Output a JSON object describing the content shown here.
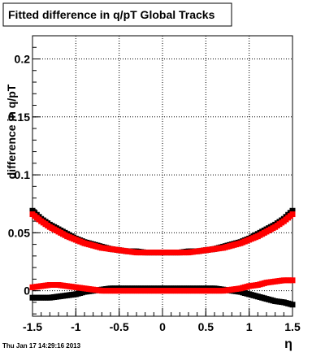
{
  "chart_data": {
    "type": "scatter",
    "title": "Fitted difference in q/pT  Global Tracks",
    "xlabel": "η",
    "ylabel": "difference in q/pT",
    "xlim": [
      -1.5,
      1.5
    ],
    "ylim": [
      -0.022,
      0.22
    ],
    "x_ticks": [
      "-1.5",
      "-1",
      "-0.5",
      "0",
      "0.5",
      "1",
      "1.5"
    ],
    "y_ticks": [
      "0",
      "0.05",
      "0.1",
      "0.15",
      "0.2"
    ],
    "grid": true,
    "timestamp": "Thu Jan 17 14:29:16 2013",
    "series": [
      {
        "color": "#000000",
        "x": [
          -1.5,
          -1.4,
          -1.3,
          -1.2,
          -1.1,
          -1.0,
          -0.9,
          -0.8,
          -0.7,
          -0.6,
          -0.5,
          -0.4,
          -0.3,
          -0.2,
          -0.1,
          0.0,
          0.1,
          0.2,
          0.3,
          0.4,
          0.5,
          0.6,
          0.7,
          0.8,
          0.9,
          1.0,
          1.1,
          1.2,
          1.3,
          1.4,
          1.5
        ],
        "y": [
          0.069,
          0.062,
          0.057,
          0.053,
          0.049,
          0.045,
          0.042,
          0.04,
          0.038,
          0.036,
          0.035,
          0.034,
          0.034,
          0.033,
          0.033,
          0.033,
          0.033,
          0.033,
          0.034,
          0.034,
          0.035,
          0.036,
          0.038,
          0.04,
          0.042,
          0.045,
          0.049,
          0.053,
          0.057,
          0.062,
          0.069
        ]
      },
      {
        "color": "#ff0000",
        "x": [
          -1.5,
          -1.4,
          -1.3,
          -1.2,
          -1.1,
          -1.0,
          -0.9,
          -0.8,
          -0.7,
          -0.6,
          -0.5,
          -0.4,
          -0.3,
          -0.2,
          -0.1,
          0.0,
          0.1,
          0.2,
          0.3,
          0.4,
          0.5,
          0.6,
          0.7,
          0.8,
          0.9,
          1.0,
          1.1,
          1.2,
          1.3,
          1.4,
          1.5
        ],
        "y": [
          0.066,
          0.06,
          0.055,
          0.051,
          0.047,
          0.044,
          0.041,
          0.039,
          0.037,
          0.036,
          0.035,
          0.034,
          0.033,
          0.033,
          0.033,
          0.033,
          0.033,
          0.033,
          0.033,
          0.034,
          0.035,
          0.036,
          0.037,
          0.039,
          0.041,
          0.044,
          0.047,
          0.051,
          0.055,
          0.06,
          0.066
        ]
      },
      {
        "color": "#000000",
        "x": [
          -1.5,
          -1.4,
          -1.3,
          -1.2,
          -1.1,
          -1.0,
          -0.9,
          -0.8,
          -0.7,
          -0.6,
          -0.5,
          -0.4,
          -0.3,
          -0.2,
          -0.1,
          0.0,
          0.1,
          0.2,
          0.3,
          0.4,
          0.5,
          0.6,
          0.7,
          0.8,
          0.9,
          1.0,
          1.1,
          1.2,
          1.3,
          1.4,
          1.5
        ],
        "y": [
          -0.006,
          -0.006,
          -0.006,
          -0.005,
          -0.004,
          -0.003,
          -0.001,
          0.0,
          0.001,
          0.002,
          0.002,
          0.002,
          0.002,
          0.002,
          0.002,
          0.002,
          0.002,
          0.002,
          0.002,
          0.002,
          0.002,
          0.002,
          0.001,
          0.0,
          -0.001,
          -0.003,
          -0.005,
          -0.007,
          -0.009,
          -0.01,
          -0.012
        ]
      },
      {
        "color": "#ff0000",
        "x": [
          -1.5,
          -1.4,
          -1.3,
          -1.2,
          -1.1,
          -1.0,
          -0.9,
          -0.8,
          -0.7,
          -0.6,
          -0.5,
          -0.4,
          -0.3,
          -0.2,
          -0.1,
          0.0,
          0.1,
          0.2,
          0.3,
          0.4,
          0.5,
          0.6,
          0.7,
          0.8,
          0.9,
          1.0,
          1.1,
          1.2,
          1.3,
          1.4,
          1.5
        ],
        "y": [
          0.003,
          0.004,
          0.005,
          0.005,
          0.004,
          0.003,
          0.002,
          0.001,
          0.0,
          0.0,
          0.0,
          0.0,
          0.0,
          0.0,
          0.0,
          0.0,
          0.0,
          0.0,
          0.0,
          0.0,
          0.0,
          0.0,
          0.0,
          0.001,
          0.002,
          0.004,
          0.005,
          0.007,
          0.008,
          0.009,
          0.009
        ]
      }
    ]
  }
}
